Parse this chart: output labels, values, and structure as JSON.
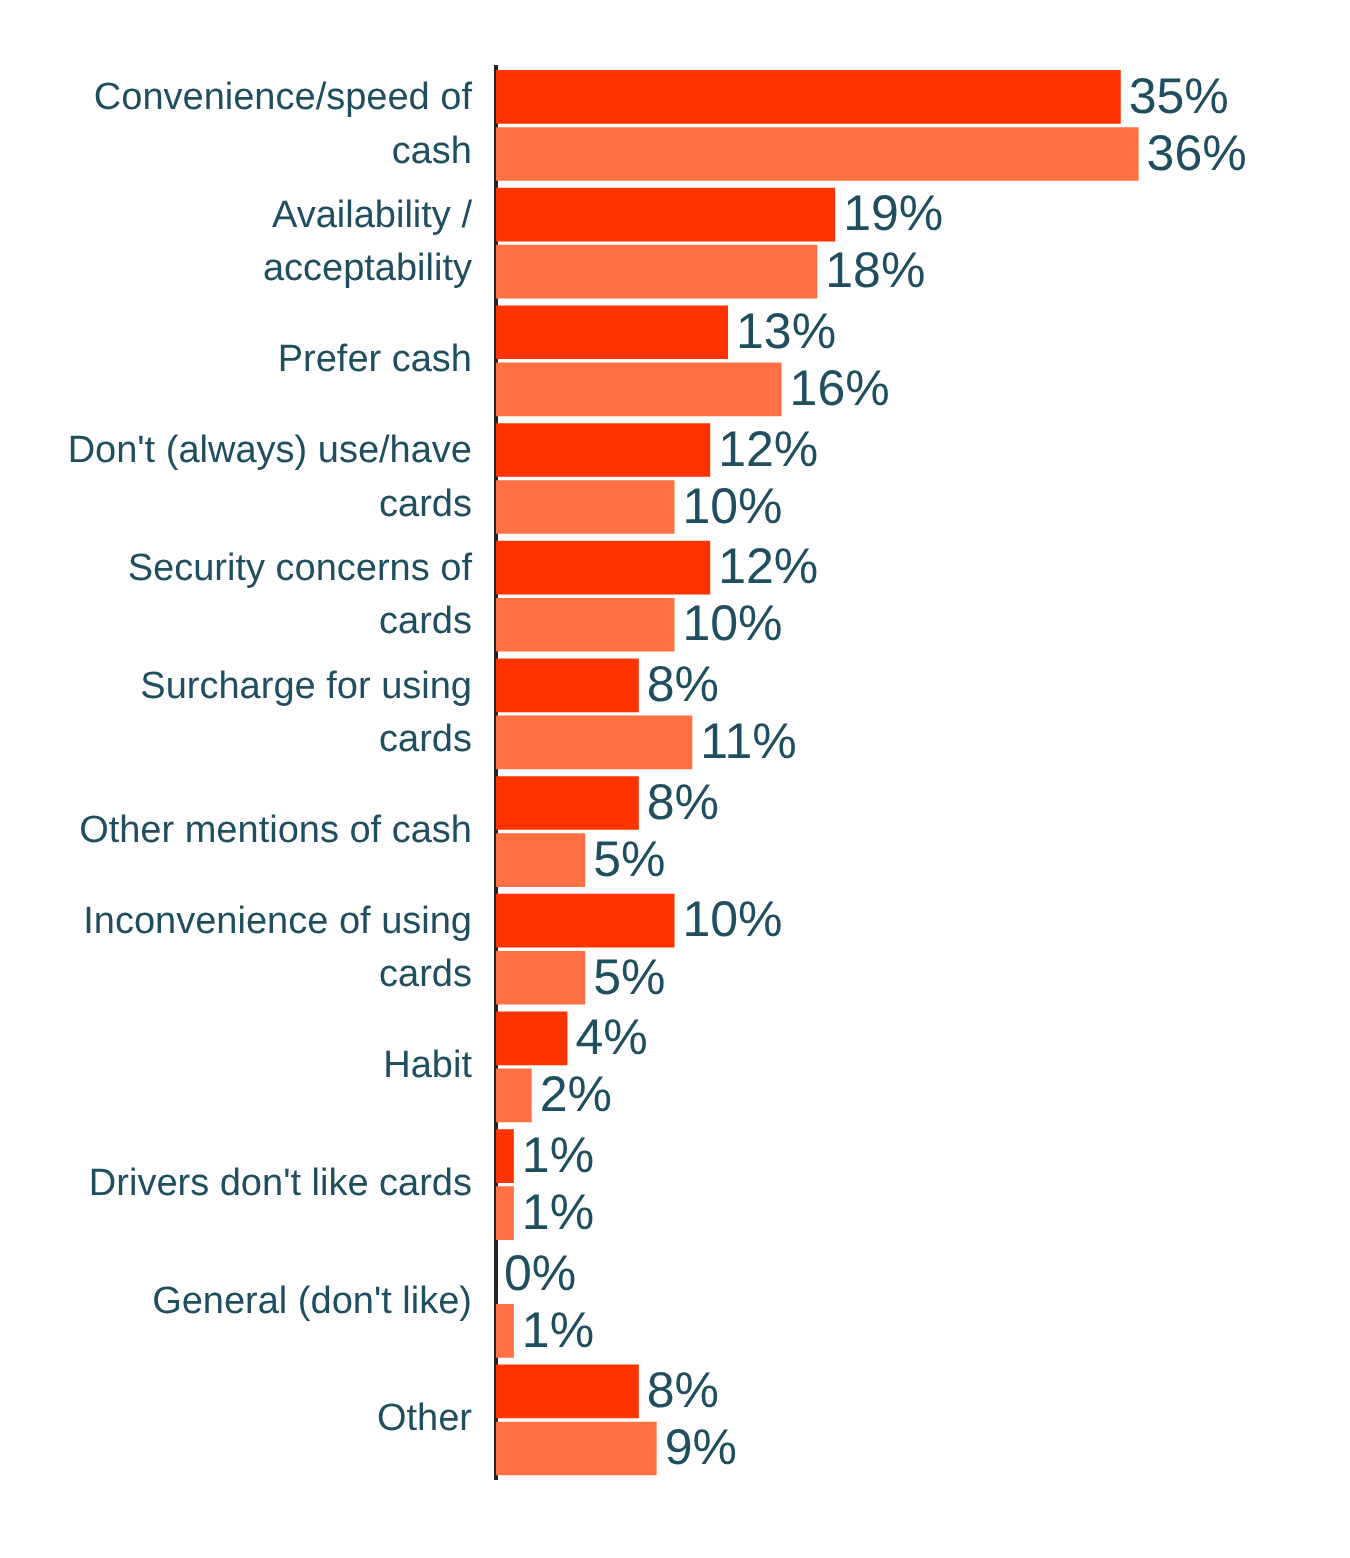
{
  "chart_data": {
    "type": "bar",
    "orientation": "horizontal",
    "categories": [
      "Convenience/speed of cash",
      "Availability / acceptability",
      "Prefer cash",
      "Don't (always) use/have cards",
      "Security concerns of cards",
      "Surcharge for using cards",
      "Other mentions of cash",
      "Inconvenience of using cards",
      "Habit",
      "Drivers don't like cards",
      "General (don't like)",
      "Other"
    ],
    "series": [
      {
        "color": "#ff3300",
        "values": [
          35,
          19,
          13,
          12,
          12,
          8,
          8,
          10,
          4,
          1,
          0,
          8
        ],
        "value_labels": [
          "35%",
          "19%",
          "13%",
          "12%",
          "12%",
          "8%",
          "8%",
          "10%",
          "4%",
          "1%",
          "0%",
          "8%"
        ]
      },
      {
        "color": "#ff7043",
        "values": [
          36,
          18,
          16,
          10,
          10,
          11,
          5,
          5,
          2,
          1,
          1,
          9
        ],
        "value_labels": [
          "36%",
          "18%",
          "16%",
          "10%",
          "10%",
          "11%",
          "5%",
          "5%",
          "2%",
          "1%",
          "1%",
          "9%"
        ]
      }
    ],
    "tick_labels": "y",
    "grid": false,
    "legend": false
  }
}
